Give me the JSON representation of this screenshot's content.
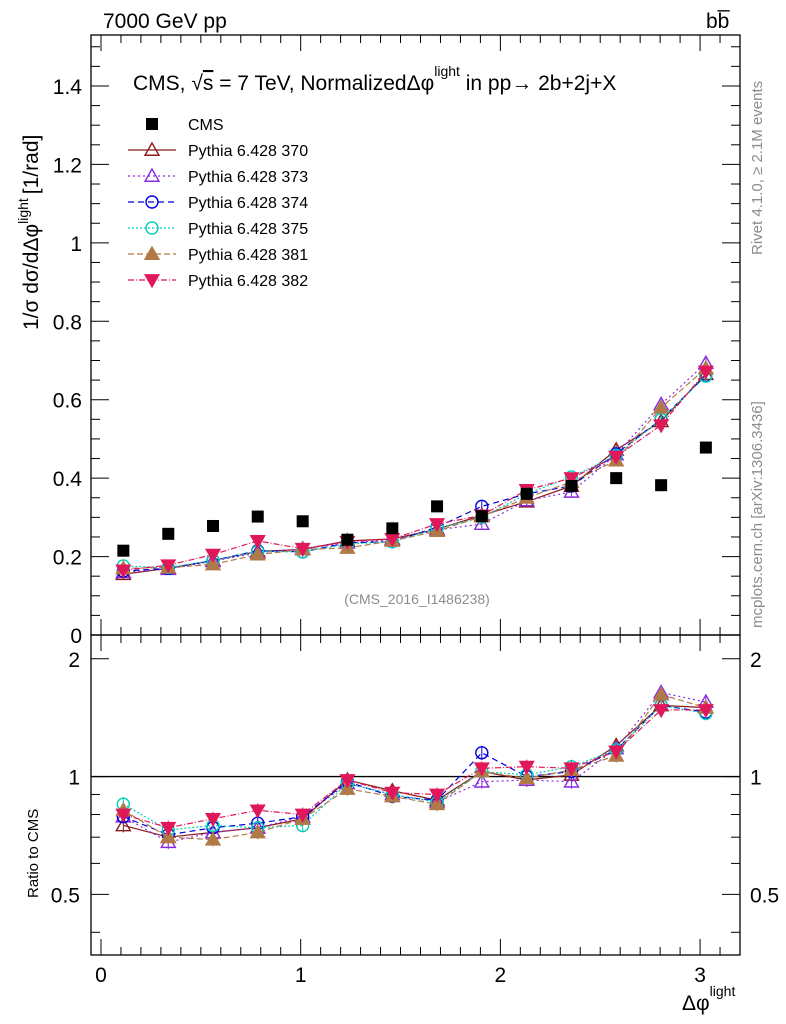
{
  "header": {
    "left": "7000 GeV pp",
    "right": "bb̅"
  },
  "side_labels": {
    "rivet": "Rivet 4.1.0, ≥ 2.1M events",
    "mcplots": "mcplots.cern.ch [arXiv:1306.3436]"
  },
  "chart_data": {
    "type": "scatter",
    "title": "CMS, √s = 7 TeV, NormalizedΔφ^light in pp → 2b+2j+X",
    "title_parts": {
      "prefix": "CMS, ",
      "sqrt": "√",
      "s": "s",
      "energy": " = 7 TeV, NormalizedΔφ",
      "sup": "light",
      "process": " in pp→  2b+2j+X"
    },
    "watermark": "(CMS_2016_I1486238)",
    "xlabel": "Δφ",
    "xlabel_sup": "light",
    "ylabel": "1/σ dσ/dΔφ",
    "ylabel_sup": "light",
    "ylabel_unit": "[1/rad]",
    "ratio_ylabel": "Ratio to CMS",
    "xlim": [
      -0.05,
      3.2
    ],
    "ylim": [
      0,
      1.53
    ],
    "ratio_ylim": [
      0.35,
      2.3
    ],
    "x_ticks": [
      "0",
      "1",
      "2",
      "3"
    ],
    "y_ticks": [
      "0",
      "0.2",
      "0.4",
      "0.6",
      "0.8",
      "1",
      "1.2",
      "1.4"
    ],
    "ratio_ticks": [
      "0.5",
      "1",
      "2"
    ],
    "x": [
      0.112,
      0.337,
      0.561,
      0.785,
      1.01,
      1.234,
      1.459,
      1.683,
      1.907,
      2.132,
      2.356,
      2.58,
      2.805,
      3.029
    ],
    "data": {
      "name": "CMS",
      "values": [
        0.215,
        0.258,
        0.278,
        0.302,
        0.29,
        0.243,
        0.272,
        0.328,
        0.303,
        0.36,
        0.38,
        0.4,
        0.382,
        0.478
      ]
    },
    "series": [
      {
        "name": "Pythia 6.428 370",
        "color": "#8b1a1a",
        "marker": "triangle-open",
        "dash": "",
        "values": [
          0.155,
          0.17,
          0.19,
          0.213,
          0.218,
          0.24,
          0.245,
          0.27,
          0.305,
          0.34,
          0.38,
          0.472,
          0.545,
          0.665
        ],
        "ratio": [
          0.75,
          0.7,
          0.72,
          0.74,
          0.78,
          0.98,
          0.92,
          0.87,
          1.03,
          0.98,
          1.01,
          1.2,
          1.52,
          1.5
        ]
      },
      {
        "name": "Pythia 6.428 373",
        "color": "#8a2be2",
        "marker": "triangle-open",
        "dash": "2,3",
        "values": [
          0.16,
          0.168,
          0.188,
          0.21,
          0.22,
          0.235,
          0.242,
          0.268,
          0.283,
          0.343,
          0.365,
          0.46,
          0.588,
          0.693
        ],
        "ratio": [
          0.79,
          0.68,
          0.72,
          0.74,
          0.79,
          0.96,
          0.9,
          0.86,
          0.97,
          0.98,
          0.97,
          1.18,
          1.64,
          1.55
        ]
      },
      {
        "name": "Pythia 6.428 374",
        "color": "#0000e0",
        "marker": "circle-open",
        "dash": "6,4",
        "values": [
          0.163,
          0.17,
          0.19,
          0.215,
          0.212,
          0.235,
          0.238,
          0.275,
          0.328,
          0.36,
          0.38,
          0.462,
          0.55,
          0.662
        ],
        "ratio": [
          0.79,
          0.71,
          0.74,
          0.76,
          0.79,
          0.97,
          0.89,
          0.87,
          1.15,
          1.0,
          1.03,
          1.17,
          1.52,
          1.46
        ]
      },
      {
        "name": "Pythia 6.428 375",
        "color": "#00d0b8",
        "marker": "circle-open",
        "dash": "2,2",
        "values": [
          0.176,
          0.172,
          0.19,
          0.213,
          0.212,
          0.232,
          0.238,
          0.272,
          0.3,
          0.36,
          0.403,
          0.458,
          0.55,
          0.66
        ],
        "ratio": [
          0.85,
          0.73,
          0.75,
          0.74,
          0.75,
          0.96,
          0.9,
          0.86,
          1.03,
          1.01,
          1.06,
          1.17,
          1.52,
          1.45
        ]
      },
      {
        "name": "Pythia 6.428 381",
        "color": "#b07a48",
        "marker": "triangle-filled",
        "dash": "6,3",
        "values": [
          0.17,
          0.172,
          0.18,
          0.205,
          0.218,
          0.222,
          0.24,
          0.265,
          0.302,
          0.35,
          0.39,
          0.445,
          0.58,
          0.68
        ],
        "ratio": [
          0.82,
          0.7,
          0.69,
          0.72,
          0.78,
          0.93,
          0.89,
          0.85,
          1.03,
          0.99,
          1.04,
          1.13,
          1.62,
          1.5
        ]
      },
      {
        "name": "Pythia 6.428 382",
        "color": "#e0185a",
        "marker": "triangle-down-filled",
        "dash": "6,2,1,2",
        "values": [
          0.165,
          0.178,
          0.205,
          0.24,
          0.22,
          0.238,
          0.245,
          0.283,
          0.305,
          0.37,
          0.4,
          0.455,
          0.535,
          0.672
        ],
        "ratio": [
          0.8,
          0.74,
          0.78,
          0.82,
          0.8,
          0.98,
          0.91,
          0.9,
          1.05,
          1.06,
          1.05,
          1.16,
          1.48,
          1.48
        ]
      }
    ]
  }
}
